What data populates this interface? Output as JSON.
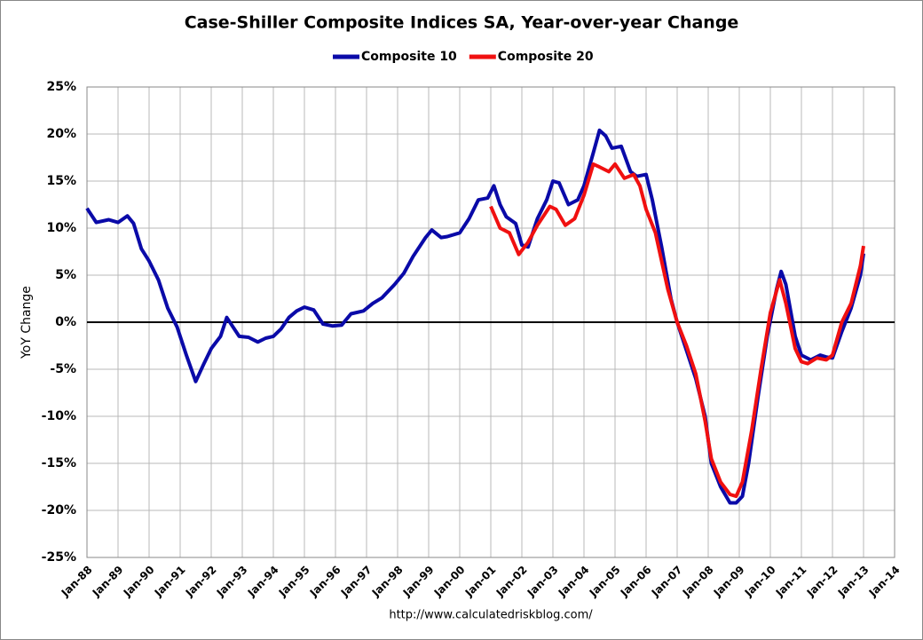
{
  "chart_data": {
    "type": "line",
    "title": "Case-Shiller Composite Indices SA, Year-over-year Change",
    "y_label": "YoY Change",
    "source": "http://www.calculatedriskblog.com/",
    "legend": "top",
    "grid": true,
    "xlim": [
      1988,
      2014
    ],
    "xticks": [
      {
        "value": 1988,
        "label": "Jan-88"
      },
      {
        "value": 1989,
        "label": "Jan-89"
      },
      {
        "value": 1990,
        "label": "Jan-90"
      },
      {
        "value": 1991,
        "label": "Jan-91"
      },
      {
        "value": 1992,
        "label": "Jan-92"
      },
      {
        "value": 1993,
        "label": "Jan-93"
      },
      {
        "value": 1994,
        "label": "Jan-94"
      },
      {
        "value": 1995,
        "label": "Jan-95"
      },
      {
        "value": 1996,
        "label": "Jan-96"
      },
      {
        "value": 1997,
        "label": "Jan-97"
      },
      {
        "value": 1998,
        "label": "Jan-98"
      },
      {
        "value": 1999,
        "label": "Jan-99"
      },
      {
        "value": 2000,
        "label": "Jan-00"
      },
      {
        "value": 2001,
        "label": "Jan-01"
      },
      {
        "value": 2002,
        "label": "Jan-02"
      },
      {
        "value": 2003,
        "label": "Jan-03"
      },
      {
        "value": 2004,
        "label": "Jan-04"
      },
      {
        "value": 2005,
        "label": "Jan-05"
      },
      {
        "value": 2006,
        "label": "Jan-06"
      },
      {
        "value": 2007,
        "label": "Jan-07"
      },
      {
        "value": 2008,
        "label": "Jan-08"
      },
      {
        "value": 2009,
        "label": "Jan-09"
      },
      {
        "value": 2010,
        "label": "Jan-10"
      },
      {
        "value": 2011,
        "label": "Jan-11"
      },
      {
        "value": 2012,
        "label": "Jan-12"
      },
      {
        "value": 2013,
        "label": "Jan-13"
      },
      {
        "value": 2014,
        "label": "Jan-14"
      }
    ],
    "ylim": [
      -25,
      25
    ],
    "yticks": [
      {
        "value": -25,
        "label": "-25%"
      },
      {
        "value": -20,
        "label": "-20%"
      },
      {
        "value": -15,
        "label": "-15%"
      },
      {
        "value": -10,
        "label": "-10%"
      },
      {
        "value": -5,
        "label": "-5%"
      },
      {
        "value": 0,
        "label": "0%"
      },
      {
        "value": 5,
        "label": "5%"
      },
      {
        "value": 10,
        "label": "10%"
      },
      {
        "value": 15,
        "label": "15%"
      },
      {
        "value": 20,
        "label": "20%"
      },
      {
        "value": 25,
        "label": "25%"
      }
    ],
    "series": [
      {
        "name": "Composite 10",
        "color": "#0a0aa8",
        "x": [
          1988.0,
          1988.3,
          1988.7,
          1989.0,
          1989.3,
          1989.5,
          1989.75,
          1990.0,
          1990.3,
          1990.6,
          1990.9,
          1991.2,
          1991.5,
          1991.75,
          1992.0,
          1992.3,
          1992.5,
          1992.7,
          1992.9,
          1993.2,
          1993.5,
          1993.75,
          1994.0,
          1994.25,
          1994.5,
          1994.75,
          1995.0,
          1995.3,
          1995.6,
          1995.9,
          1996.2,
          1996.5,
          1996.9,
          1997.2,
          1997.5,
          1997.9,
          1998.2,
          1998.5,
          1998.9,
          1999.1,
          1999.4,
          1999.6,
          2000.0,
          2000.3,
          2000.6,
          2000.9,
          2001.1,
          2001.3,
          2001.5,
          2001.8,
          2002.0,
          2002.2,
          2002.5,
          2002.8,
          2003.0,
          2003.2,
          2003.5,
          2003.8,
          2004.0,
          2004.3,
          2004.5,
          2004.7,
          2004.9,
          2005.2,
          2005.5,
          2005.7,
          2006.0,
          2006.2,
          2006.5,
          2006.8,
          2007.0,
          2007.3,
          2007.6,
          2007.9,
          2008.1,
          2008.4,
          2008.7,
          2008.9,
          2009.1,
          2009.3,
          2009.6,
          2009.9,
          2010.2,
          2010.35,
          2010.5,
          2010.8,
          2011.0,
          2011.3,
          2011.6,
          2011.8,
          2012.0,
          2012.3,
          2012.6,
          2012.9,
          2013.0
        ],
        "values": [
          12.1,
          10.6,
          10.9,
          10.6,
          11.3,
          10.5,
          7.8,
          6.5,
          4.5,
          1.5,
          -0.5,
          -3.5,
          -6.3,
          -4.5,
          -2.8,
          -1.5,
          0.5,
          -0.5,
          -1.5,
          -1.6,
          -2.1,
          -1.7,
          -1.5,
          -0.7,
          0.5,
          1.2,
          1.6,
          1.3,
          -0.2,
          -0.4,
          -0.3,
          0.9,
          1.2,
          2.0,
          2.6,
          4.0,
          5.2,
          7.0,
          9.0,
          9.8,
          9.0,
          9.1,
          9.5,
          11.0,
          13.0,
          13.2,
          14.5,
          12.5,
          11.2,
          10.5,
          8.2,
          8.0,
          11.0,
          13.0,
          15.0,
          14.8,
          12.5,
          13.0,
          14.5,
          18.0,
          20.4,
          19.8,
          18.5,
          18.7,
          16.0,
          15.5,
          15.7,
          13.0,
          8.0,
          2.5,
          0.0,
          -3.0,
          -6.0,
          -10.0,
          -15.0,
          -17.5,
          -19.2,
          -19.2,
          -18.5,
          -15.0,
          -8.0,
          -1.5,
          3.5,
          5.4,
          4.0,
          -1.5,
          -3.5,
          -4.0,
          -3.5,
          -3.7,
          -3.8,
          -1.0,
          1.5,
          5.0,
          7.3
        ]
      },
      {
        "name": "Composite 20",
        "color": "#f01010",
        "x": [
          2001.0,
          2001.3,
          2001.6,
          2001.9,
          2002.2,
          2002.5,
          2002.9,
          2003.1,
          2003.4,
          2003.7,
          2004.0,
          2004.3,
          2004.5,
          2004.8,
          2005.0,
          2005.3,
          2005.6,
          2005.8,
          2006.0,
          2006.3,
          2006.7,
          2007.0,
          2007.3,
          2007.6,
          2007.9,
          2008.1,
          2008.4,
          2008.7,
          2008.9,
          2009.1,
          2009.4,
          2009.7,
          2010.0,
          2010.3,
          2010.5,
          2010.8,
          2011.0,
          2011.2,
          2011.5,
          2011.8,
          2012.0,
          2012.3,
          2012.6,
          2012.9,
          2013.0
        ],
        "values": [
          12.3,
          10.0,
          9.5,
          7.2,
          8.5,
          10.3,
          12.3,
          12.0,
          10.3,
          11.0,
          13.5,
          16.8,
          16.5,
          16.0,
          16.8,
          15.3,
          15.7,
          14.5,
          12.0,
          9.5,
          3.5,
          0.0,
          -2.5,
          -5.5,
          -10.5,
          -14.5,
          -17.0,
          -18.3,
          -18.5,
          -17.0,
          -11.5,
          -5.0,
          1.0,
          4.5,
          2.0,
          -2.8,
          -4.2,
          -4.4,
          -3.8,
          -4.0,
          -3.5,
          0.0,
          2.0,
          6.0,
          8.1
        ]
      }
    ]
  }
}
